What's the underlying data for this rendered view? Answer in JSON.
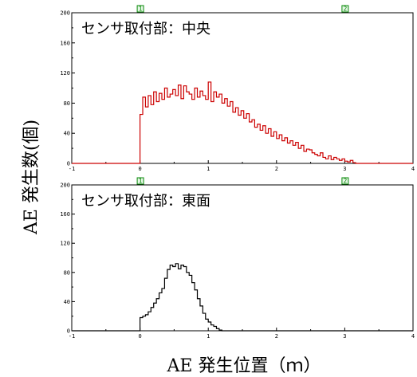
{
  "figure": {
    "ylabel": "AE 発生数(個)",
    "xlabel": "AE 発生位置（ｍ）"
  },
  "chart_data": [
    {
      "type": "bar",
      "title": "センサ取付部：中央",
      "xlim": [
        -1,
        4
      ],
      "ylim": [
        0,
        200
      ],
      "xticks": [
        "-1",
        "0",
        "1",
        "2",
        "3",
        "4"
      ],
      "yticks": [
        "0",
        "40",
        "80",
        "120",
        "160",
        "200"
      ],
      "markers": [
        {
          "label": "1",
          "x": 0
        },
        {
          "label": "2",
          "x": 3
        }
      ],
      "color": "#cc0000",
      "bin_width": 0.04,
      "x_start": 0,
      "values": [
        65,
        88,
        75,
        90,
        78,
        95,
        82,
        93,
        85,
        100,
        88,
        92,
        98,
        90,
        104,
        86,
        103,
        95,
        92,
        85,
        100,
        88,
        96,
        90,
        85,
        108,
        82,
        95,
        88,
        92,
        80,
        86,
        76,
        82,
        68,
        74,
        64,
        70,
        60,
        66,
        55,
        58,
        48,
        52,
        44,
        50,
        40,
        46,
        36,
        42,
        33,
        38,
        30,
        34,
        27,
        30,
        24,
        28,
        20,
        24,
        16,
        19,
        18,
        14,
        12,
        10,
        14,
        8,
        6,
        10,
        5,
        8,
        6,
        4,
        6,
        3,
        2,
        4,
        1,
        0
      ]
    },
    {
      "type": "bar",
      "title": "センサ取付部：東面",
      "xlim": [
        -1,
        4
      ],
      "ylim": [
        0,
        200
      ],
      "xticks": [
        "-1",
        "0",
        "1",
        "2",
        "3",
        "4"
      ],
      "yticks": [
        "0",
        "40",
        "80",
        "120",
        "160",
        "200"
      ],
      "markers": [
        {
          "label": "1",
          "x": 0
        },
        {
          "label": "2",
          "x": 3
        }
      ],
      "color": "#000000",
      "bin_width": 0.04,
      "x_start": 0,
      "values": [
        18,
        20,
        22,
        26,
        32,
        38,
        44,
        52,
        58,
        72,
        84,
        90,
        88,
        92,
        85,
        90,
        88,
        80,
        76,
        66,
        56,
        44,
        34,
        24,
        16,
        12,
        8,
        6,
        3,
        1,
        0
      ]
    }
  ]
}
